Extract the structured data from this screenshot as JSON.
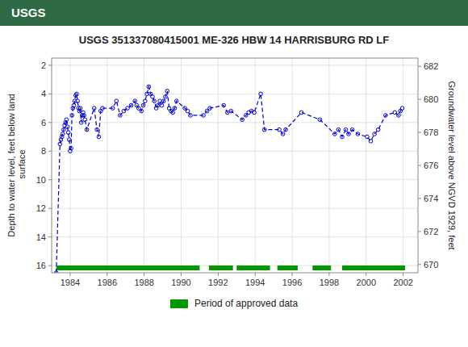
{
  "chart_data": {
    "type": "line",
    "title": "USGS 351337080415001 ME-326 HBW 14 HARRISBURG RD LF",
    "annotations": [
      "USGS"
    ],
    "ylabel": "Depth to water level, feet below land\n surface",
    "y2label": "Groundwater level above NGVD 1929, feet",
    "x": [
      1983.25,
      1983.45,
      1983.5,
      1983.55,
      1983.6,
      1983.65,
      1983.7,
      1983.75,
      1983.8,
      1983.85,
      1983.9,
      1983.95,
      1984.0,
      1984.05,
      1984.1,
      1984.15,
      1984.2,
      1984.25,
      1984.3,
      1984.35,
      1984.4,
      1984.45,
      1984.5,
      1984.55,
      1984.6,
      1984.65,
      1984.7,
      1984.75,
      1984.8,
      1984.9,
      1985.3,
      1985.45,
      1985.55,
      1985.65,
      1985.75,
      1986.3,
      1986.5,
      1986.7,
      1986.9,
      1987.1,
      1987.3,
      1987.5,
      1987.6,
      1987.7,
      1987.85,
      1987.95,
      1988.05,
      1988.15,
      1988.25,
      1988.35,
      1988.45,
      1988.55,
      1988.65,
      1988.75,
      1988.85,
      1988.95,
      1989.05,
      1989.15,
      1989.25,
      1989.35,
      1989.45,
      1989.55,
      1989.65,
      1989.75,
      1990.2,
      1990.35,
      1990.5,
      1991.2,
      1991.4,
      1991.55,
      1992.3,
      1992.5,
      1992.7,
      1993.3,
      1993.5,
      1993.65,
      1993.8,
      1993.95,
      1994.3,
      1994.5,
      1995.3,
      1995.5,
      1995.65,
      1996.5,
      1997.5,
      1998.3,
      1998.5,
      1998.7,
      1998.9,
      1999.05,
      1999.25,
      1999.55,
      2000.05,
      2000.25,
      2000.45,
      2000.65,
      2001.05,
      2001.55,
      2001.75,
      2001.85,
      2001.95
    ],
    "series": [
      {
        "color": "#0000cc",
        "marker": "circle",
        "line_style": "dashed",
        "values": [
          16.5,
          7.5,
          7.2,
          7.0,
          6.8,
          6.5,
          6.2,
          6.0,
          5.8,
          6.3,
          6.7,
          7.2,
          8.0,
          7.8,
          5.5,
          5.0,
          4.8,
          4.5,
          4.1,
          4.0,
          4.5,
          5.0,
          5.2,
          5.0,
          6.0,
          5.5,
          5.3,
          5.5,
          5.8,
          6.5,
          5.0,
          6.5,
          7.0,
          5.2,
          5.0,
          5.0,
          4.5,
          5.5,
          5.2,
          5.0,
          4.8,
          4.5,
          4.8,
          5.0,
          5.2,
          4.8,
          4.5,
          4.0,
          3.5,
          4.0,
          4.2,
          4.5,
          5.0,
          4.8,
          4.5,
          4.8,
          4.5,
          4.2,
          3.8,
          5.0,
          5.2,
          5.3,
          5.0,
          4.5,
          5.0,
          5.2,
          5.5,
          5.5,
          5.2,
          5.0,
          4.8,
          5.3,
          5.2,
          5.8,
          5.5,
          5.3,
          5.2,
          5.3,
          4.0,
          6.5,
          6.5,
          6.8,
          6.5,
          5.3,
          5.8,
          6.8,
          6.5,
          7.0,
          6.5,
          6.8,
          6.5,
          6.8,
          7.0,
          7.3,
          6.8,
          6.5,
          5.5,
          5.3,
          5.5,
          5.2,
          5.0
        ]
      }
    ],
    "periods": {
      "name": "Period of approved data",
      "color": "#009900",
      "values": [
        [
          1983.25,
          1991.0
        ],
        [
          1991.5,
          1992.8
        ],
        [
          1993.0,
          1994.8
        ],
        [
          1995.2,
          1996.3
        ],
        [
          1997.1,
          1998.1
        ],
        [
          1998.7,
          2002.1
        ]
      ]
    },
    "xlim": [
      1983.0,
      2002.8
    ],
    "xticks": [
      1984,
      1986,
      1988,
      1990,
      1992,
      1994,
      1996,
      1998,
      2000,
      2002
    ],
    "ylim": [
      16.5,
      1.5
    ],
    "yticks": [
      2,
      4,
      6,
      8,
      10,
      12,
      14,
      16
    ],
    "y2lim": [
      669.5,
      682.5
    ],
    "y2ticks": [
      670,
      672,
      674,
      676,
      678,
      680,
      682
    ],
    "grid": true,
    "legend": "bottom"
  }
}
